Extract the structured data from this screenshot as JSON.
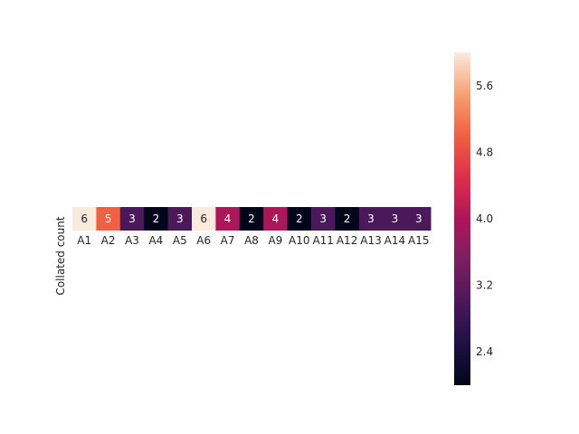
{
  "chart_data": {
    "type": "heatmap",
    "title": "",
    "xlabel": "",
    "ylabel": "Collated count",
    "categories": [
      "A1",
      "A2",
      "A3",
      "A4",
      "A5",
      "A6",
      "A7",
      "A8",
      "A9",
      "A10",
      "A11",
      "A12",
      "A13",
      "A14",
      "A15"
    ],
    "rows": [
      ""
    ],
    "values": [
      [
        6,
        5,
        3,
        2,
        3,
        6,
        4,
        2,
        4,
        2,
        3,
        2,
        3,
        3,
        3
      ]
    ],
    "annotations_shown": true,
    "colorbar": {
      "vmin": 2,
      "vmax": 6,
      "ticks": [
        2.4,
        3.2,
        4.0,
        4.8,
        5.6
      ],
      "tick_labels": [
        "2.4",
        "3.2",
        "4.0",
        "4.8",
        "5.6"
      ],
      "colormap": "rocket"
    },
    "grid": false,
    "legend": "colorbar-right"
  }
}
